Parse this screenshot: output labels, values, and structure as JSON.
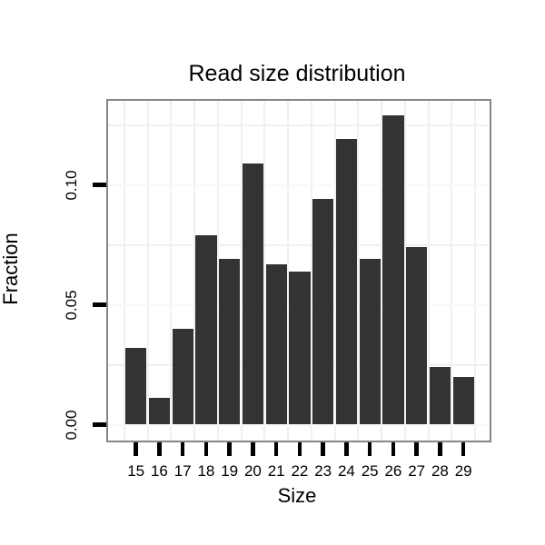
{
  "chart_data": {
    "type": "bar",
    "title": "Read size distribution",
    "xlabel": "Size",
    "ylabel": "Fraction",
    "categories": [
      15,
      16,
      17,
      18,
      19,
      20,
      21,
      22,
      23,
      24,
      25,
      26,
      27,
      28,
      29
    ],
    "values": [
      0.032,
      0.011,
      0.04,
      0.079,
      0.069,
      0.109,
      0.067,
      0.064,
      0.094,
      0.119,
      0.069,
      0.129,
      0.074,
      0.024,
      0.02
    ],
    "ylim": [
      -0.0065,
      0.1345
    ],
    "ytick_values": [
      0,
      0.05,
      0.1
    ],
    "ytick_labels": [
      "0.00",
      "0.05",
      "0.10"
    ],
    "yminor_values": [
      0.025,
      0.075,
      0.125
    ],
    "grid": "faint minor gridlines, white panel with grey border",
    "legend": "none",
    "colors": {
      "bar_fill": "#333333",
      "panel_border": "#868686",
      "grid_major": "#f8f8f8",
      "grid_minor": "#f0f0f0",
      "background": "#ffffff",
      "text": "#000000",
      "tick_mark": "#000000"
    }
  }
}
